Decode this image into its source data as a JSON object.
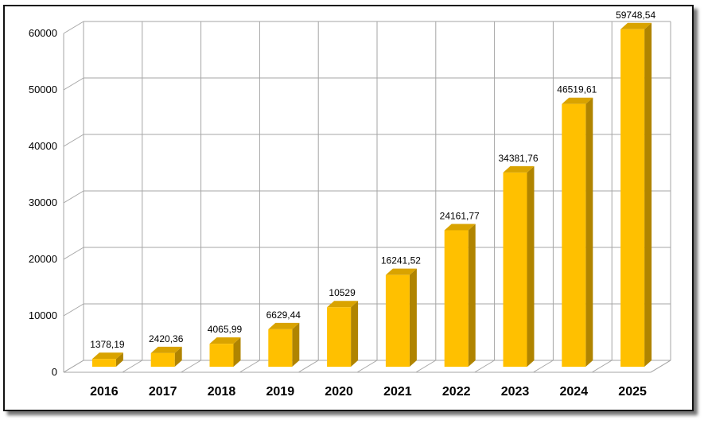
{
  "chart_data": {
    "type": "bar",
    "categories": [
      "2016",
      "2017",
      "2018",
      "2019",
      "2020",
      "2021",
      "2022",
      "2023",
      "2024",
      "2025"
    ],
    "values": [
      1378.19,
      2420.36,
      4065.99,
      6629.44,
      10529,
      16241.52,
      24161.77,
      34381.76,
      46519.61,
      59748.54
    ],
    "data_labels": [
      "1378,19",
      "2420,36",
      "4065,99",
      "6629,44",
      "10529",
      "16241,52",
      "24161,77",
      "34381,76",
      "46519,61",
      "59748,54"
    ],
    "y_ticks": [
      "0",
      "10000",
      "20000",
      "30000",
      "40000",
      "50000",
      "60000"
    ],
    "ylim": [
      0,
      60000
    ],
    "grid": true,
    "style": "3d-bar",
    "colors": {
      "bar_front": "#FFC000",
      "bar_side": "#B08400",
      "bar_top": "#D9A300",
      "grid": "#a6a6a6"
    }
  }
}
